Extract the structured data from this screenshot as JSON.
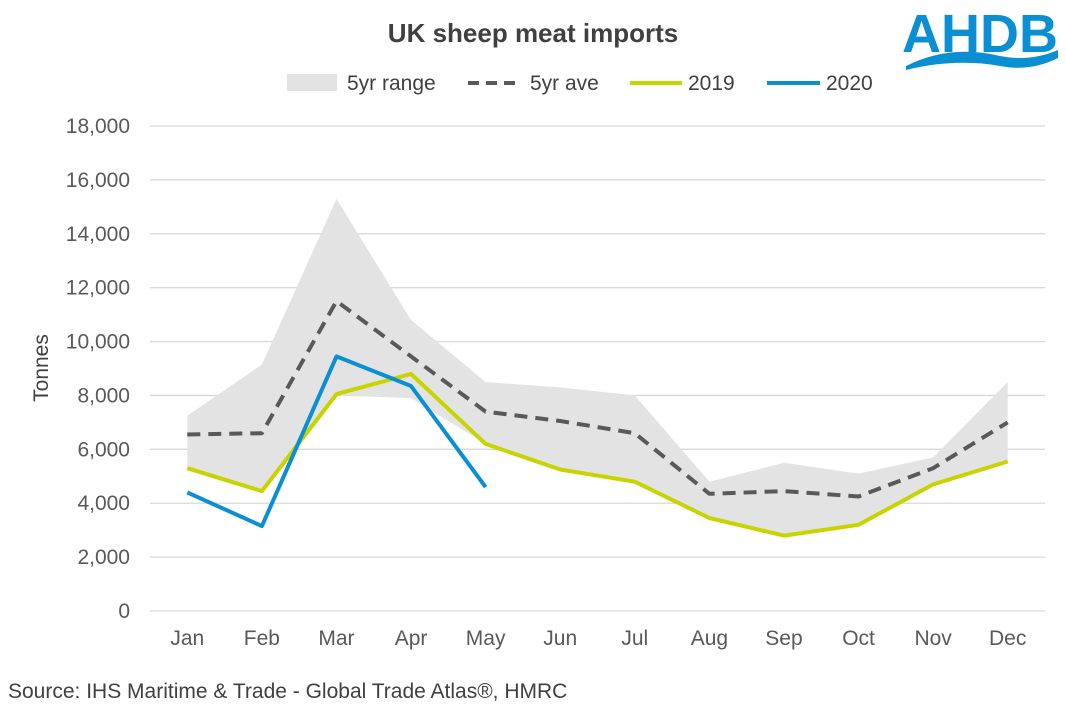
{
  "chart_data": {
    "type": "line",
    "title": "UK sheep meat imports",
    "ylabel": "Tonnes",
    "xlabel": "",
    "categories": [
      "Jan",
      "Feb",
      "Mar",
      "Apr",
      "May",
      "Jun",
      "Jul",
      "Aug",
      "Sep",
      "Oct",
      "Nov",
      "Dec"
    ],
    "ylim": [
      0,
      18000
    ],
    "yticks": [
      0,
      2000,
      4000,
      6000,
      8000,
      10000,
      12000,
      14000,
      16000,
      18000
    ],
    "ytick_labels": [
      "0",
      "2,000",
      "4,000",
      "6,000",
      "8,000",
      "10,000",
      "12,000",
      "14,000",
      "16,000",
      "18,000"
    ],
    "grid": true,
    "legend_position": "top",
    "range": {
      "name": "5yr range",
      "min": [
        5300,
        4450,
        8000,
        7900,
        6200,
        5250,
        4800,
        3400,
        2800,
        3200,
        4700,
        5500
      ],
      "max": [
        7250,
        9150,
        15300,
        10800,
        8500,
        8300,
        8000,
        4800,
        5500,
        5100,
        5700,
        8500
      ]
    },
    "series": [
      {
        "name": "5yr ave",
        "style": "dashed",
        "values": [
          6550,
          6600,
          11500,
          9450,
          7400,
          7050,
          6600,
          4350,
          4450,
          4250,
          5300,
          7000
        ]
      },
      {
        "name": "2019",
        "style": "solid",
        "values": [
          5300,
          4450,
          8050,
          8800,
          6200,
          5250,
          4800,
          3450,
          2800,
          3200,
          4700,
          5550
        ]
      },
      {
        "name": "2020",
        "style": "solid",
        "values": [
          4400,
          3150,
          9450,
          8350,
          4600,
          null,
          null,
          null,
          null,
          null,
          null,
          null
        ]
      }
    ],
    "source": "Source: IHS Maritime & Trade - Global Trade Atlas®, HMRC"
  },
  "logo": {
    "text": "AHDB"
  },
  "colors": {
    "range": "#e3e3e3",
    "ave": "#595959",
    "y2019": "#c8d400",
    "y2020": "#0a8fd2",
    "grid": "#d9d9d9",
    "logo": "#0a8fd2"
  }
}
